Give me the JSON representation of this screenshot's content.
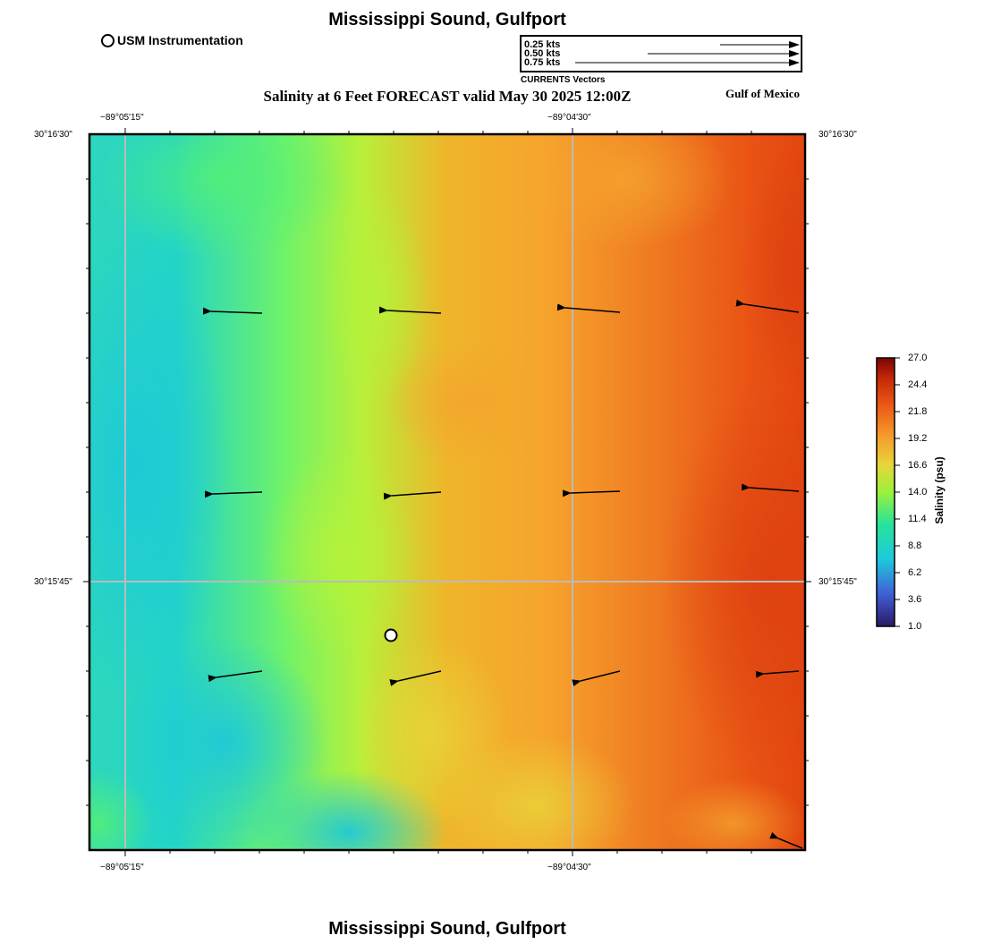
{
  "header": {
    "title": "Mississippi Sound, Gulfport",
    "subtitle": "Salinity at 6 Feet FORECAST valid May 30 2025 12:00Z",
    "region_label": "Gulf of Mexico",
    "footer_title": "Mississippi Sound, Gulfport"
  },
  "instrument_legend": {
    "label": "USM Instrumentation"
  },
  "vector_legend": {
    "caption": "CURRENTS Vectors",
    "rows": [
      {
        "label": "0.25 kts",
        "speed_kts": 0.25
      },
      {
        "label": "0.50 kts",
        "speed_kts": 0.5
      },
      {
        "label": "0.75 kts",
        "speed_kts": 0.75
      }
    ]
  },
  "map": {
    "lon_labels": [
      "−89°05'15\"",
      "−89°04'30\""
    ],
    "lat_labels": [
      "30°16'30\"",
      "30°15'45\""
    ],
    "colors": {
      "frame": "#000000",
      "grid": "#bbbbbb"
    }
  },
  "colorbar": {
    "label": "Salinity (psu)",
    "ticks": [
      "27.0",
      "24.4",
      "21.8",
      "19.2",
      "16.6",
      "14.0",
      "11.4",
      "8.8",
      "6.2",
      "3.6",
      "1.0"
    ],
    "min": 1.0,
    "max": 27.0,
    "colors": [
      "#2b1864",
      "#3f5fd6",
      "#1fc8dc",
      "#27e39a",
      "#9bf03c",
      "#e6d63a",
      "#f6a02e",
      "#eb5b16",
      "#c82a08",
      "#7a0505"
    ]
  }
}
